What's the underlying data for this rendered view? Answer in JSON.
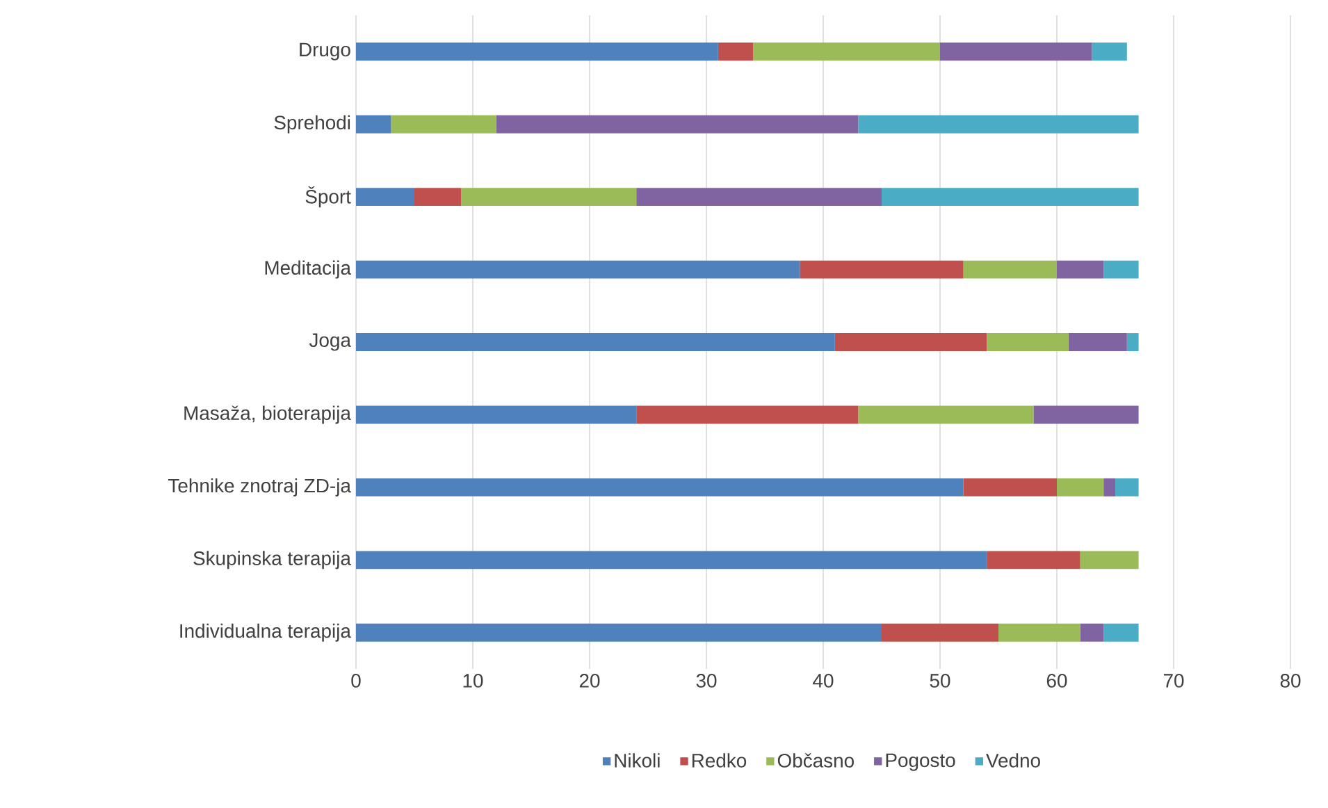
{
  "chart_data": {
    "type": "bar",
    "orientation": "horizontal",
    "stacked": true,
    "categories": [
      "Drugo",
      "Sprehodi",
      "Šport",
      "Meditacija",
      "Joga",
      "Masaža, bioterapija",
      "Tehnike znotraj ZD-ja",
      "Skupinska terapija",
      "Individualna terapija"
    ],
    "series": [
      {
        "name": "Nikoli",
        "color": "#4f81bd",
        "values": [
          31,
          3,
          5,
          38,
          41,
          24,
          52,
          54,
          45
        ]
      },
      {
        "name": "Redko",
        "color": "#c0504d",
        "values": [
          3,
          0,
          4,
          14,
          13,
          19,
          8,
          8,
          10
        ]
      },
      {
        "name": "Občasno",
        "color": "#9bbb59",
        "values": [
          16,
          9,
          15,
          8,
          7,
          15,
          4,
          5,
          7
        ]
      },
      {
        "name": "Pogosto",
        "color": "#8064a2",
        "values": [
          13,
          31,
          21,
          4,
          5,
          9,
          1,
          0,
          2
        ]
      },
      {
        "name": "Vedno",
        "color": "#4bacc6",
        "values": [
          3,
          24,
          22,
          3,
          1,
          0,
          2,
          0,
          3
        ]
      }
    ],
    "xlim": [
      0,
      80
    ],
    "xticks": [
      0,
      10,
      20,
      30,
      40,
      50,
      60,
      70,
      80
    ],
    "grid": "x",
    "legend": "bottom"
  }
}
